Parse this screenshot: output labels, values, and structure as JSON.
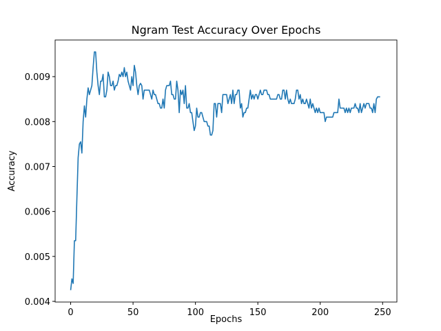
{
  "chart_data": {
    "type": "line",
    "title": "Ngram Test Accuracy Over Epochs",
    "x_label": "Epochs",
    "y_label": "Accuracy",
    "x": [
      0,
      1,
      2,
      3,
      4,
      5,
      6,
      7,
      8,
      9,
      10,
      11,
      12,
      13,
      14,
      15,
      16,
      17,
      18,
      19,
      20,
      21,
      22,
      23,
      24,
      25,
      26,
      27,
      28,
      29,
      30,
      31,
      32,
      33,
      34,
      35,
      36,
      37,
      38,
      39,
      40,
      41,
      42,
      43,
      44,
      45,
      46,
      47,
      48,
      49,
      50,
      51,
      52,
      53,
      54,
      55,
      56,
      57,
      58,
      59,
      60,
      61,
      62,
      63,
      64,
      65,
      66,
      67,
      68,
      69,
      70,
      71,
      72,
      73,
      74,
      75,
      76,
      77,
      78,
      79,
      80,
      81,
      82,
      83,
      84,
      85,
      86,
      87,
      88,
      89,
      90,
      91,
      92,
      93,
      94,
      95,
      96,
      97,
      98,
      99,
      100,
      101,
      102,
      103,
      104,
      105,
      106,
      107,
      108,
      109,
      110,
      111,
      112,
      113,
      114,
      115,
      116,
      117,
      118,
      119,
      120,
      121,
      122,
      123,
      124,
      125,
      126,
      127,
      128,
      129,
      130,
      131,
      132,
      133,
      134,
      135,
      136,
      137,
      138,
      139,
      140,
      141,
      142,
      143,
      144,
      145,
      146,
      147,
      148,
      149,
      150,
      151,
      152,
      153,
      154,
      155,
      156,
      157,
      158,
      159,
      160,
      161,
      162,
      163,
      164,
      165,
      166,
      167,
      168,
      169,
      170,
      171,
      172,
      173,
      174,
      175,
      176,
      177,
      178,
      179,
      180,
      181,
      182,
      183,
      184,
      185,
      186,
      187,
      188,
      189,
      190,
      191,
      192,
      193,
      194,
      195,
      196,
      197,
      198,
      199,
      200,
      201,
      202,
      203,
      204,
      205,
      206,
      207,
      208,
      209,
      210,
      211,
      212,
      213,
      214,
      215,
      216,
      217,
      218,
      219,
      220,
      221,
      222,
      223,
      224,
      225,
      226,
      227,
      228,
      229,
      230,
      231,
      232,
      233,
      234,
      235,
      236,
      237,
      238,
      239,
      240,
      241,
      242,
      243,
      244,
      245,
      246,
      247,
      248
    ],
    "series": [
      {
        "color": "#1f77b4",
        "values": [
          0.00425,
          0.0045,
          0.0044,
          0.00535,
          0.00535,
          0.0063,
          0.0072,
          0.0075,
          0.00755,
          0.0073,
          0.008,
          0.00835,
          0.0081,
          0.0085,
          0.00875,
          0.0086,
          0.0087,
          0.0088,
          0.0092,
          0.00955,
          0.00955,
          0.0091,
          0.0088,
          0.0086,
          0.0089,
          0.0089,
          0.00905,
          0.00855,
          0.00855,
          0.0087,
          0.0091,
          0.009,
          0.0088,
          0.0088,
          0.0089,
          0.0087,
          0.0088,
          0.0088,
          0.0089,
          0.00905,
          0.009,
          0.0091,
          0.009,
          0.0092,
          0.009,
          0.0091,
          0.0089,
          0.0088,
          0.0087,
          0.009,
          0.0088,
          0.00925,
          0.0091,
          0.0088,
          0.0086,
          0.0088,
          0.00885,
          0.0088,
          0.0085,
          0.0087,
          0.0087,
          0.0087,
          0.0087,
          0.0087,
          0.0086,
          0.0085,
          0.0087,
          0.0086,
          0.0086,
          0.0085,
          0.0084,
          0.0084,
          0.0083,
          0.0083,
          0.0085,
          0.0083,
          0.0087,
          0.0088,
          0.0088,
          0.0088,
          0.0089,
          0.0086,
          0.0086,
          0.0085,
          0.0085,
          0.0089,
          0.0087,
          0.0082,
          0.0087,
          0.0086,
          0.0087,
          0.0084,
          0.0088,
          0.0083,
          0.0083,
          0.0084,
          0.0082,
          0.0082,
          0.008,
          0.0078,
          0.0079,
          0.0083,
          0.0081,
          0.0081,
          0.0082,
          0.0082,
          0.0081,
          0.008,
          0.008,
          0.008,
          0.0079,
          0.0079,
          0.0077,
          0.0077,
          0.0078,
          0.0084,
          0.0084,
          0.0081,
          0.0084,
          0.0084,
          0.0084,
          0.0082,
          0.0086,
          0.0086,
          0.0086,
          0.0086,
          0.0084,
          0.0085,
          0.0086,
          0.0084,
          0.0087,
          0.0084,
          0.0086,
          0.0086,
          0.0087,
          0.0087,
          0.0083,
          0.0084,
          0.0081,
          0.0082,
          0.0082,
          0.0083,
          0.0083,
          0.0085,
          0.0087,
          0.0085,
          0.0086,
          0.0085,
          0.0086,
          0.0086,
          0.0085,
          0.0086,
          0.0087,
          0.0086,
          0.0086,
          0.0087,
          0.0087,
          0.0087,
          0.0086,
          0.0086,
          0.0085,
          0.0085,
          0.0085,
          0.0085,
          0.0085,
          0.0085,
          0.0086,
          0.0086,
          0.0085,
          0.0085,
          0.0087,
          0.0087,
          0.0085,
          0.0087,
          0.0085,
          0.0084,
          0.0085,
          0.0084,
          0.0084,
          0.0084,
          0.0085,
          0.0087,
          0.0087,
          0.0085,
          0.0086,
          0.0084,
          0.0085,
          0.0084,
          0.0084,
          0.0085,
          0.0084,
          0.0083,
          0.0085,
          0.0083,
          0.0084,
          0.0083,
          0.0082,
          0.0083,
          0.0082,
          0.0083,
          0.0082,
          0.0082,
          0.0082,
          0.0082,
          0.008,
          0.0081,
          0.0081,
          0.0081,
          0.0081,
          0.0081,
          0.0081,
          0.0082,
          0.0082,
          0.0082,
          0.0082,
          0.0085,
          0.0083,
          0.0083,
          0.0083,
          0.0083,
          0.0082,
          0.0083,
          0.0082,
          0.0083,
          0.0082,
          0.0083,
          0.0083,
          0.0083,
          0.0084,
          0.0083,
          0.0083,
          0.0082,
          0.0084,
          0.0082,
          0.0083,
          0.0084,
          0.0083,
          0.0084,
          0.0084,
          0.0084,
          0.0083,
          0.0083,
          0.0082,
          0.0084,
          0.0082,
          0.0085,
          0.00855,
          0.00855,
          0.00855
        ]
      }
    ],
    "xlim": [
      -12.45,
      261.45
    ],
    "ylim": [
      0.003985,
      0.009815
    ],
    "xticks": [
      0,
      50,
      100,
      150,
      200,
      250
    ],
    "yticks": [
      0.004,
      0.005,
      0.006,
      0.007,
      0.008,
      0.009
    ],
    "grid": false
  }
}
